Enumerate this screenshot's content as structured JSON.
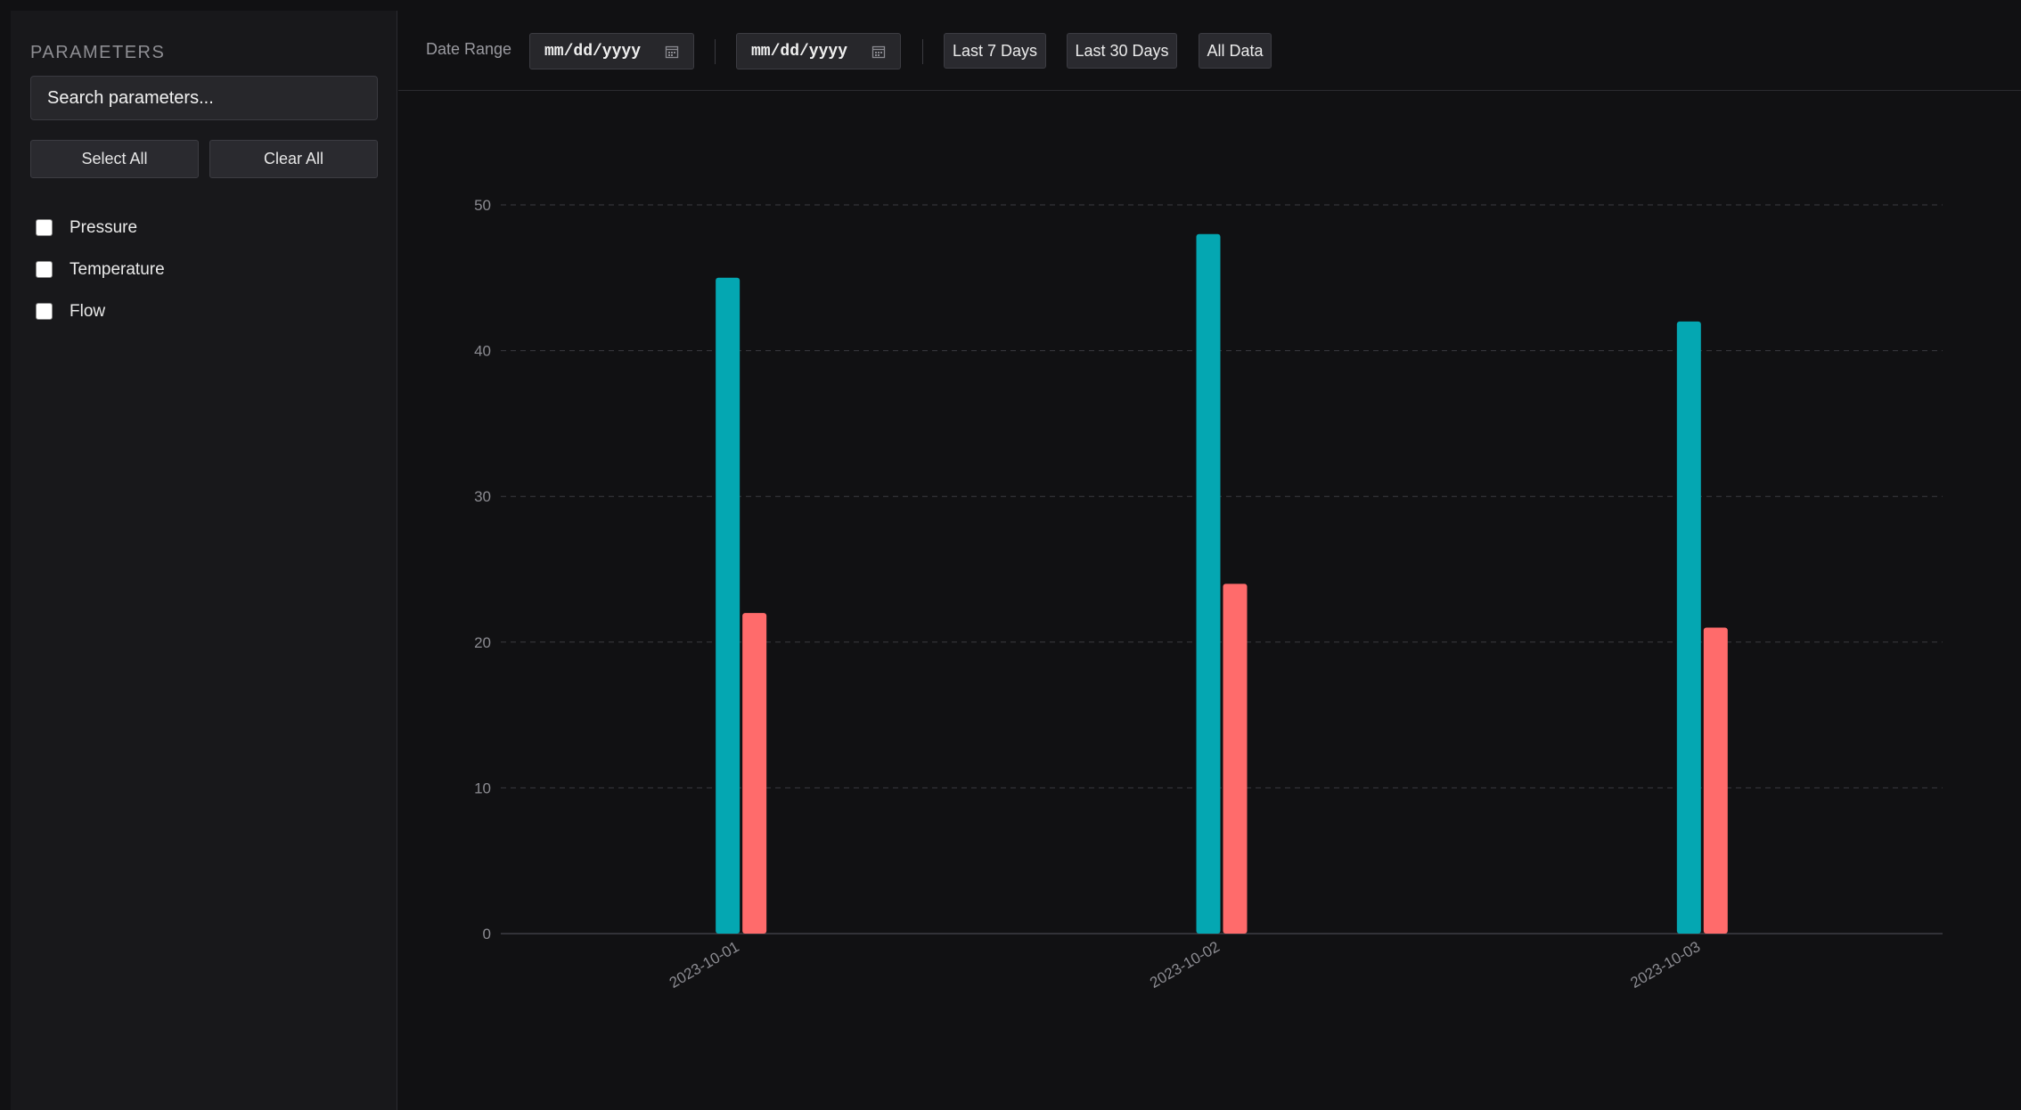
{
  "sidebar": {
    "title": "PARAMETERS",
    "search_placeholder": "Search parameters...",
    "select_all_label": "Select All",
    "clear_all_label": "Clear All",
    "params": [
      {
        "label": "Pressure",
        "checked": false
      },
      {
        "label": "Temperature",
        "checked": false
      },
      {
        "label": "Flow",
        "checked": false
      }
    ]
  },
  "toolbar": {
    "date_range_label": "Date Range",
    "start_date_placeholder": "mm/dd/yyyy",
    "end_date_placeholder": "mm/dd/yyyy",
    "last7_label": "Last 7 Days",
    "last30_label": "Last 30 Days",
    "all_data_label": "All Data"
  },
  "colors": {
    "series1": "#04a7b2",
    "series2": "#ff6b6b",
    "grid": "#3a3a40",
    "axis_text": "#8b8b91"
  },
  "chart_data": {
    "type": "bar",
    "categories": [
      "2023-10-01",
      "2023-10-02",
      "2023-10-03"
    ],
    "series": [
      {
        "values": [
          45,
          48,
          42
        ],
        "color": "#04a7b2"
      },
      {
        "values": [
          22,
          24,
          21
        ],
        "color": "#ff6b6b"
      }
    ],
    "ylim": [
      0,
      50
    ],
    "yticks": [
      "0",
      "10",
      "20",
      "30",
      "40",
      "50"
    ],
    "grid": true,
    "xlabel": "",
    "ylabel": "",
    "title": ""
  }
}
